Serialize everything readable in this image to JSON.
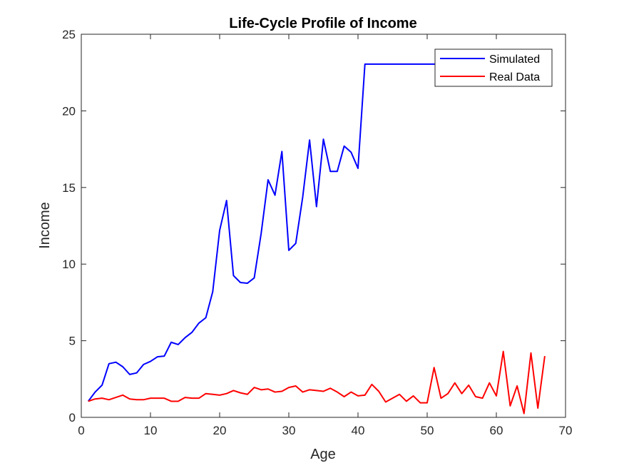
{
  "chart_data": {
    "type": "line",
    "title": "Life-Cycle Profile of Income",
    "xlabel": "Age",
    "ylabel": "Income",
    "xlim": [
      0,
      70
    ],
    "ylim": [
      0,
      25
    ],
    "xticks": [
      0,
      10,
      20,
      30,
      40,
      50,
      60,
      70
    ],
    "yticks": [
      0,
      5,
      10,
      15,
      20,
      25
    ],
    "grid": false,
    "legend_position": "top-right",
    "series": [
      {
        "name": "Simulated",
        "color": "#0000ff",
        "x": [
          1,
          2,
          3,
          4,
          5,
          6,
          7,
          8,
          9,
          10,
          11,
          12,
          13,
          14,
          15,
          16,
          17,
          18,
          19,
          20,
          21,
          22,
          23,
          24,
          25,
          26,
          27,
          28,
          29,
          30,
          31,
          32,
          33,
          34,
          35,
          36,
          37,
          38,
          39,
          40,
          41,
          42,
          43,
          44,
          45,
          46,
          47,
          48,
          49,
          50,
          51,
          52,
          53,
          54,
          55,
          56
        ],
        "values": [
          1.05,
          1.65,
          2.1,
          3.5,
          3.6,
          3.3,
          2.8,
          2.9,
          3.45,
          3.65,
          3.95,
          4.0,
          4.9,
          4.75,
          5.2,
          5.55,
          6.15,
          6.5,
          8.2,
          12.2,
          14.15,
          9.25,
          8.8,
          8.75,
          9.1,
          12.0,
          15.5,
          14.5,
          17.35,
          10.9,
          11.35,
          14.35,
          18.1,
          13.75,
          18.15,
          16.05,
          16.05,
          17.7,
          17.3,
          16.25,
          23.05,
          23.05,
          23.05,
          23.05,
          23.05,
          23.05,
          23.05,
          23.05,
          23.05,
          23.05,
          23.05,
          23.05,
          23.05,
          23.05,
          23.05,
          23.05
        ]
      },
      {
        "name": "Real Data",
        "color": "#ff0000",
        "x": [
          1,
          2,
          3,
          4,
          5,
          6,
          7,
          8,
          9,
          10,
          11,
          12,
          13,
          14,
          15,
          16,
          17,
          18,
          19,
          20,
          21,
          22,
          23,
          24,
          25,
          26,
          27,
          28,
          29,
          30,
          31,
          32,
          33,
          34,
          35,
          36,
          37,
          38,
          39,
          40,
          41,
          42,
          43,
          44,
          45,
          46,
          47,
          48,
          49,
          50,
          51,
          52,
          53,
          54,
          55,
          56,
          57,
          58,
          59,
          60,
          61,
          62,
          63,
          64,
          65,
          66,
          67
        ],
        "values": [
          1.05,
          1.2,
          1.25,
          1.15,
          1.3,
          1.45,
          1.2,
          1.15,
          1.15,
          1.25,
          1.25,
          1.25,
          1.05,
          1.05,
          1.3,
          1.25,
          1.25,
          1.55,
          1.5,
          1.45,
          1.55,
          1.75,
          1.6,
          1.5,
          1.95,
          1.8,
          1.85,
          1.65,
          1.7,
          1.95,
          2.05,
          1.65,
          1.8,
          1.75,
          1.7,
          1.9,
          1.65,
          1.35,
          1.65,
          1.4,
          1.45,
          2.15,
          1.7,
          1.0,
          1.25,
          1.5,
          1.05,
          1.4,
          0.95,
          0.95,
          3.25,
          1.25,
          1.55,
          2.25,
          1.55,
          2.1,
          1.35,
          1.25,
          2.25,
          1.4,
          4.3,
          0.75,
          2.05,
          0.25,
          4.2,
          0.6,
          4.0
        ]
      }
    ]
  }
}
